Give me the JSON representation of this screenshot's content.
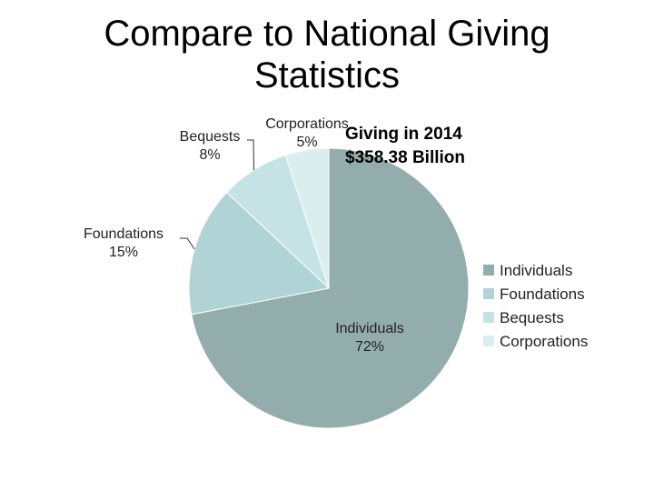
{
  "slide": {
    "title_line1": "Compare to National Giving",
    "title_line2": "Statistics",
    "subtitle_line1": "Giving in 2014",
    "subtitle_line2": "$358.38 Billion"
  },
  "chart_data": {
    "type": "pie",
    "categories": [
      "Individuals",
      "Foundations",
      "Bequests",
      "Corporations"
    ],
    "values": [
      72,
      15,
      8,
      5
    ],
    "labels": [
      "72%",
      "15%",
      "8%",
      "5%"
    ],
    "colors": [
      "#93adad",
      "#b0d3d5",
      "#c5e3e5",
      "#daeef0"
    ],
    "legend": [
      "Individuals",
      "Foundations",
      "Bequests",
      "Corporations"
    ],
    "legend_position": "right"
  }
}
